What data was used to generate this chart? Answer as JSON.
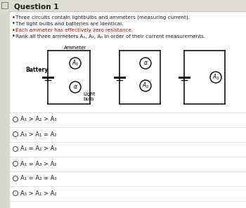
{
  "title": "Question 1",
  "bg_color": "#f0efe8",
  "title_bg": "#e8e8e0",
  "bullet_points": [
    "Three circuits contain lightbulbs and ammeters (measuring current).",
    "The light bulbs and batteries are identical.",
    "Each ammeter has effectively zero resistance.",
    "Rank all three ammeters A₁, A₂, A₃ in order of their current measurements."
  ],
  "red_bullet_index": 2,
  "choices": [
    "A₁ > A₂ > A₃",
    "A₃ > A₁ = A₂",
    "A₁ = A₂ > A₃",
    "A₁ = A₃ > A₂",
    "A₁ = A₂ = A₃",
    "A₃ > A₁ > A₂"
  ]
}
